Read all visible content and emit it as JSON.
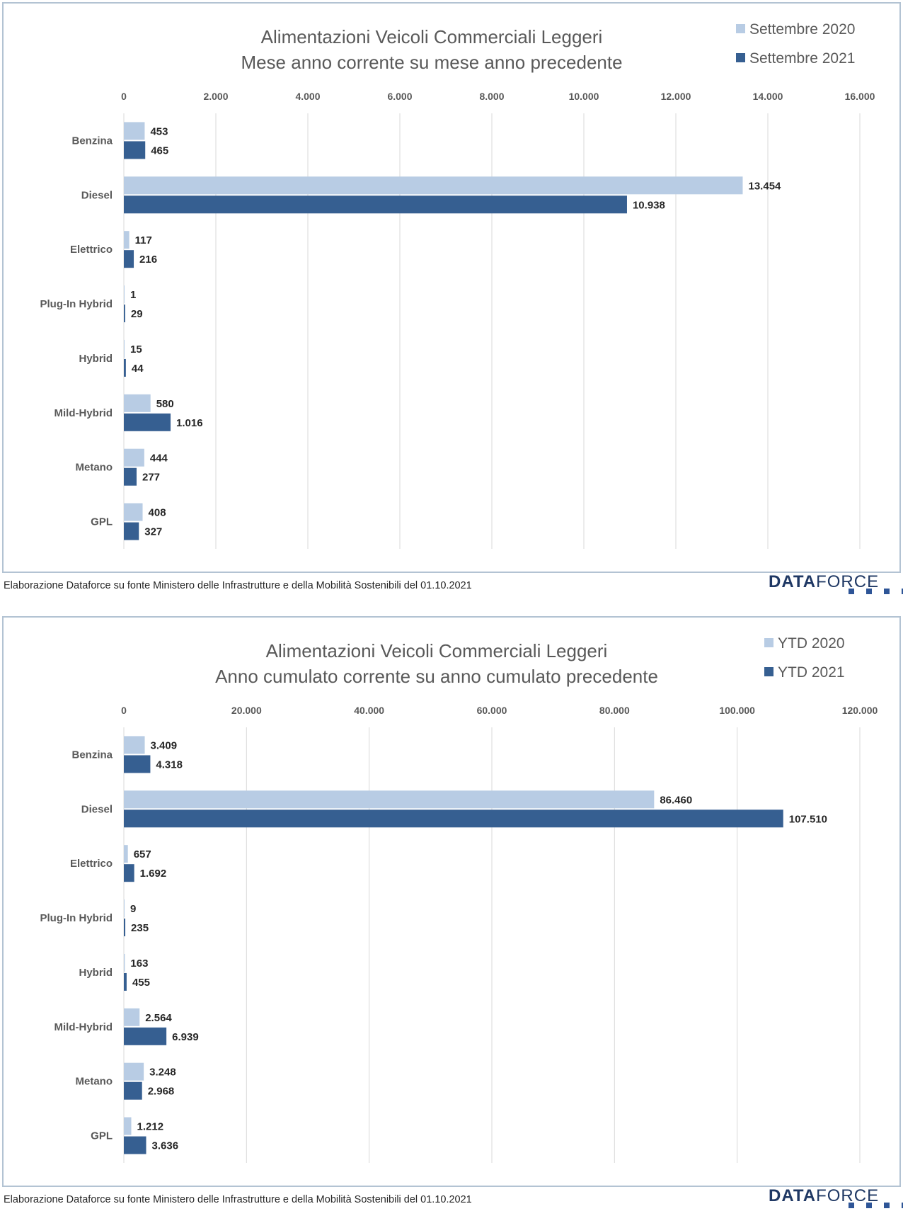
{
  "panels": [
    {
      "footer": "Elaborazione Dataforce su fonte Ministero delle Infrastrutture e della Mobilità Sostenibili del 01.10.2021",
      "logo": {
        "bold": "DATA",
        "light": "FORCE"
      },
      "chart_data": {
        "type": "bar",
        "orientation": "horizontal",
        "title": "Alimentazioni Veicoli Commerciali Leggeri",
        "subtitle": "Mese anno corrente su mese anno precedente",
        "categories": [
          "Benzina",
          "Diesel",
          "Elettrico",
          "Plug-In Hybrid",
          "Hybrid",
          "Mild-Hybrid",
          "Metano",
          "GPL"
        ],
        "series": [
          {
            "name": "Settembre 2020",
            "color": "#b8cce4",
            "values": [
              453,
              13454,
              117,
              1,
              15,
              580,
              444,
              408
            ],
            "labels": [
              "453",
              "13.454",
              "117",
              "1",
              "15",
              "580",
              "444",
              "408"
            ]
          },
          {
            "name": "Settembre 2021",
            "color": "#365f91",
            "values": [
              465,
              10938,
              216,
              29,
              44,
              1016,
              277,
              327
            ],
            "labels": [
              "465",
              "10.938",
              "216",
              "29",
              "44",
              "1.016",
              "277",
              "327"
            ]
          }
        ],
        "xlim": [
          0,
          16000
        ],
        "ticks": [
          0,
          2000,
          4000,
          6000,
          8000,
          10000,
          12000,
          14000,
          16000
        ],
        "tick_labels": [
          "0",
          "2.000",
          "4.000",
          "6.000",
          "8.000",
          "10.000",
          "12.000",
          "14.000",
          "16.000"
        ],
        "grid": "vertical",
        "legend": "top-right"
      }
    },
    {
      "footer": "Elaborazione Dataforce su fonte Ministero delle Infrastrutture e della Mobilità Sostenibili del 01.10.2021",
      "logo": {
        "bold": "DATA",
        "light": "FORCE"
      },
      "chart_data": {
        "type": "bar",
        "orientation": "horizontal",
        "title": "Alimentazioni Veicoli Commerciali Leggeri",
        "subtitle": "Anno cumulato corrente su anno cumulato precedente",
        "categories": [
          "Benzina",
          "Diesel",
          "Elettrico",
          "Plug-In Hybrid",
          "Hybrid",
          "Mild-Hybrid",
          "Metano",
          "GPL"
        ],
        "series": [
          {
            "name": "YTD 2020",
            "color": "#b8cce4",
            "values": [
              3409,
              86460,
              657,
              9,
              163,
              2564,
              3248,
              1212
            ],
            "labels": [
              "3.409",
              "86.460",
              "657",
              "9",
              "163",
              "2.564",
              "3.248",
              "1.212"
            ]
          },
          {
            "name": "YTD 2021",
            "color": "#365f91",
            "values": [
              4318,
              107510,
              1692,
              235,
              455,
              6939,
              2968,
              3636
            ],
            "labels": [
              "4.318",
              "107.510",
              "1.692",
              "235",
              "455",
              "6.939",
              "2.968",
              "3.636"
            ]
          }
        ],
        "xlim": [
          0,
          120000
        ],
        "ticks": [
          0,
          20000,
          40000,
          60000,
          80000,
          100000,
          120000
        ],
        "tick_labels": [
          "0",
          "20.000",
          "40.000",
          "60.000",
          "80.000",
          "100.000",
          "120.000"
        ],
        "grid": "vertical",
        "legend": "top-right"
      }
    }
  ]
}
